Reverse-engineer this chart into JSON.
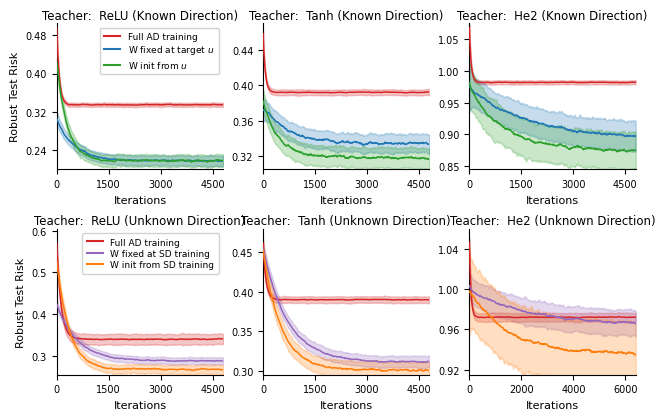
{
  "titles_top": [
    "Teacher:  ReLU (Known Direction)",
    "Teacher:  Tanh (Known Direction)",
    "Teacher:  He2 (Known Direction)"
  ],
  "titles_bottom": [
    "Teacher:  ReLU (Unknown Direction)",
    "Teacher:  Tanh (Unknown Direction)",
    "Teacher:  He2 (Unknown Direction)"
  ],
  "xlabel": "Iterations",
  "ylabel": "Robust Test Risk",
  "legend_top": [
    "Full AD training",
    "W fixed at target u",
    "W init from u"
  ],
  "legend_bottom": [
    "Full AD training",
    "W fixed at SD training",
    "W init from SD training"
  ],
  "colors_top": [
    "#d62728",
    "#1f77b4",
    "#2ca02c"
  ],
  "colors_bottom": [
    "#d62728",
    "#9467bd",
    "#ff7f0e"
  ],
  "panels": {
    "top_left": {
      "curves": [
        {
          "start": 0.497,
          "end": 0.335,
          "decay": 70,
          "noise": 0.002,
          "band": 0.004
        },
        {
          "start": 0.305,
          "end": 0.218,
          "decay": 500,
          "noise": 0.004,
          "band": 0.01
        },
        {
          "start": 0.42,
          "end": 0.218,
          "decay": 300,
          "noise": 0.005,
          "band": 0.012
        }
      ],
      "xlim": 4800,
      "ylim": [
        0.2,
        0.505
      ],
      "yticks": [
        0.24,
        0.32,
        0.4,
        0.48
      ],
      "xticks": [
        0,
        1500,
        3000,
        4500
      ]
    },
    "top_mid": {
      "curves": [
        {
          "start": 0.455,
          "end": 0.392,
          "decay": 60,
          "noise": 0.001,
          "band": 0.003
        },
        {
          "start": 0.378,
          "end": 0.334,
          "decay": 700,
          "noise": 0.004,
          "band": 0.01
        },
        {
          "start": 0.378,
          "end": 0.318,
          "decay": 500,
          "noise": 0.004,
          "band": 0.011
        }
      ],
      "xlim": 4800,
      "ylim": [
        0.305,
        0.47
      ],
      "yticks": [
        0.32,
        0.36,
        0.4,
        0.44
      ],
      "xticks": [
        0,
        1500,
        3000,
        4500
      ]
    },
    "top_right": {
      "curves": [
        {
          "start": 1.068,
          "end": 0.982,
          "decay": 50,
          "noise": 0.001,
          "band": 0.003
        },
        {
          "start": 0.972,
          "end": 0.892,
          "decay": 1800,
          "noise": 0.005,
          "band": 0.022
        },
        {
          "start": 0.972,
          "end": 0.875,
          "decay": 1000,
          "noise": 0.006,
          "band": 0.028
        }
      ],
      "xlim": 4800,
      "ylim": [
        0.845,
        1.075
      ],
      "yticks": [
        0.85,
        0.9,
        0.95,
        1.0,
        1.05
      ],
      "xticks": [
        0,
        1500,
        3000,
        4500
      ]
    },
    "bot_left": {
      "curves": [
        {
          "start": 0.575,
          "end": 0.34,
          "decay": 120,
          "noise": 0.003,
          "band": 0.012
        },
        {
          "start": 0.42,
          "end": 0.288,
          "decay": 600,
          "noise": 0.003,
          "band": 0.008
        },
        {
          "start": 0.53,
          "end": 0.268,
          "decay": 350,
          "noise": 0.004,
          "band": 0.01
        }
      ],
      "xlim": 4800,
      "ylim": [
        0.255,
        0.605
      ],
      "yticks": [
        0.3,
        0.4,
        0.5,
        0.6
      ],
      "xticks": [
        0,
        1500,
        3000,
        4500
      ]
    },
    "bot_mid": {
      "curves": [
        {
          "start": 0.462,
          "end": 0.39,
          "decay": 80,
          "noise": 0.001,
          "band": 0.004
        },
        {
          "start": 0.455,
          "end": 0.311,
          "decay": 700,
          "noise": 0.002,
          "band": 0.007
        },
        {
          "start": 0.455,
          "end": 0.301,
          "decay": 500,
          "noise": 0.003,
          "band": 0.01
        }
      ],
      "xlim": 4800,
      "ylim": [
        0.295,
        0.48
      ],
      "yticks": [
        0.3,
        0.35,
        0.4,
        0.45
      ],
      "xticks": [
        0,
        1500,
        3000,
        4500
      ]
    },
    "bot_right": {
      "curves": [
        {
          "start": 1.048,
          "end": 0.972,
          "decay": 60,
          "noise": 0.001,
          "band": 0.004
        },
        {
          "start": 0.998,
          "end": 0.963,
          "decay": 2500,
          "noise": 0.003,
          "band": 0.012
        },
        {
          "start": 0.998,
          "end": 0.935,
          "decay": 1500,
          "noise": 0.004,
          "band": 0.03
        }
      ],
      "xlim": 6400,
      "ylim": [
        0.915,
        1.06
      ],
      "yticks": [
        0.92,
        0.96,
        1.0,
        1.04
      ],
      "xticks": [
        0,
        2000,
        4000,
        6000
      ]
    }
  },
  "n_points": 600,
  "band_alpha": 0.25
}
